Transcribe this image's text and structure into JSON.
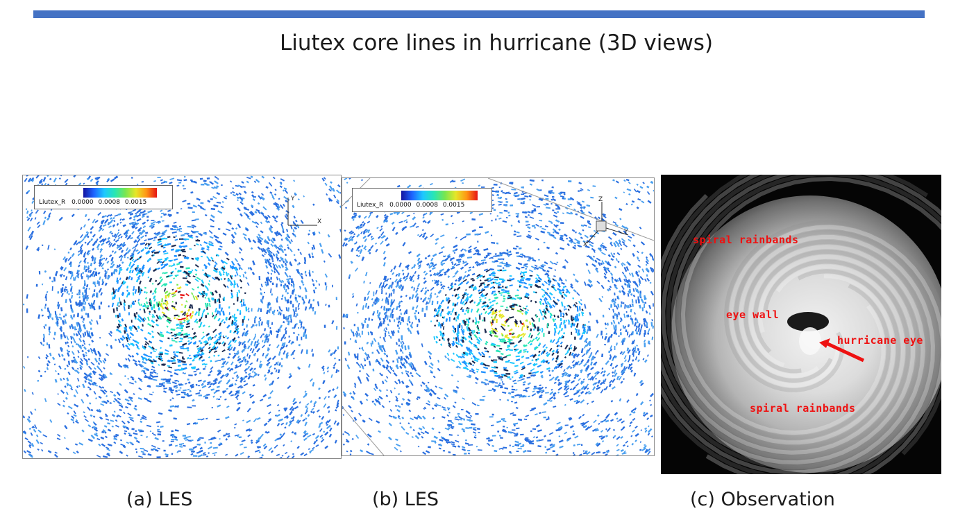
{
  "title": "Liutex core lines in hurricane (3D views)",
  "panels": [
    {
      "legend_label": "Liutex_R",
      "legend_ticks": [
        "0.0000",
        "0.0008",
        "0.0015"
      ],
      "axis_labels": [
        "Y",
        "X"
      ]
    },
    {
      "legend_label": "Liutex_R",
      "legend_ticks": [
        "0.0000",
        "0.0008",
        "0.0015"
      ],
      "axis_labels": [
        "Z",
        "Y",
        "X"
      ]
    },
    {
      "annotations": [
        "spiral rainbands",
        "eye wall",
        "hurricane eye",
        "spiral rainbands"
      ]
    }
  ],
  "captions": [
    "(a) LES",
    "(b) LES",
    "(c) Observation"
  ],
  "colors": {
    "rule": "#4472c4",
    "annotation": "#ee1111"
  }
}
